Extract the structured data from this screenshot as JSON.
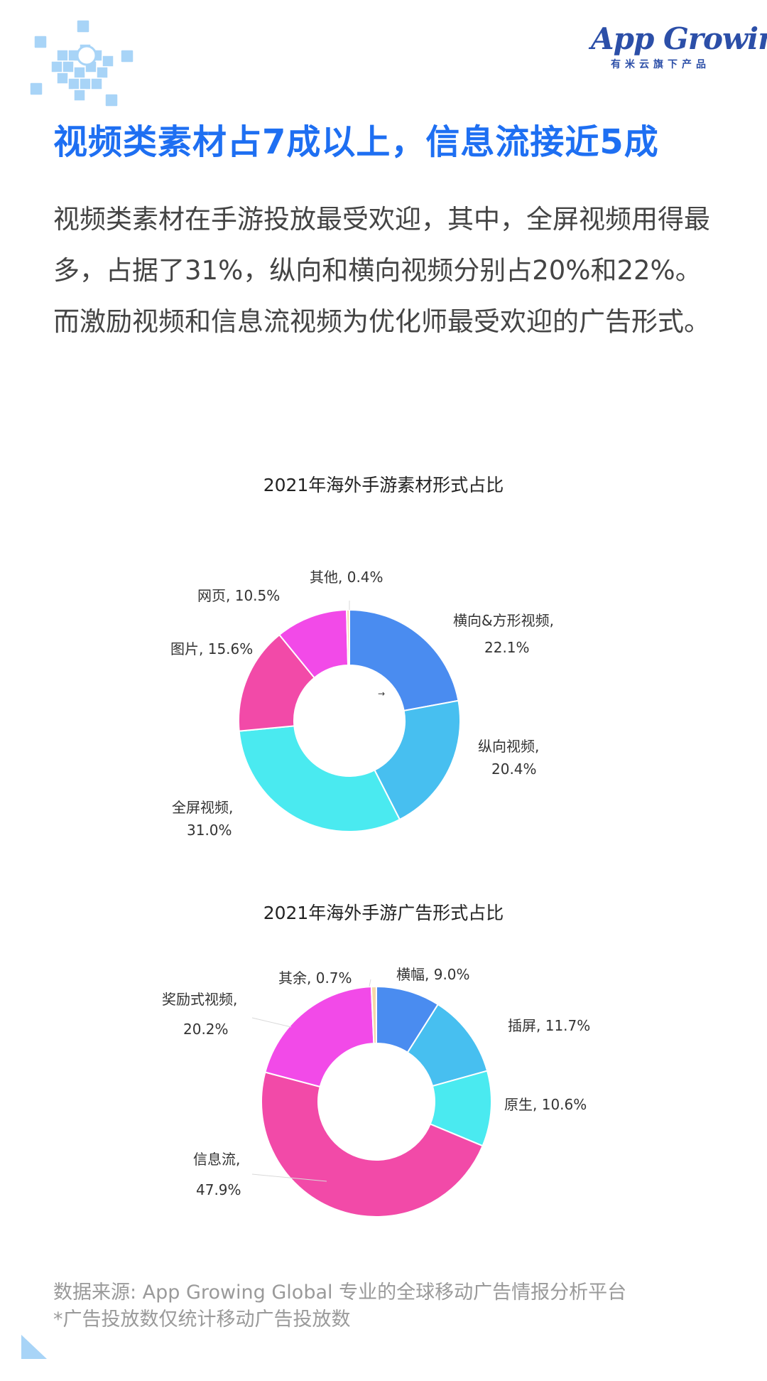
{
  "brand": {
    "name": "App Growing",
    "tagline": "有米云旗下产品"
  },
  "heading": "视频类素材占7成以上，信息流接近5成",
  "body": "视频类素材在手游投放最受欢迎，其中，全屏视频用得最多，占据了31%，纵向和横向视频分别占20%和22%。而激励视频和信息流视频为优化师最受欢迎的广告形式。",
  "colors": {
    "accent": "#1e6ff2",
    "decor": "#a8d4f7"
  },
  "chart_data": [
    {
      "type": "pie",
      "title": "2021年海外手游素材形式占比",
      "slices": [
        {
          "label_name": "横向&方形视频,",
          "label_value": "22.1%",
          "value": 22.1,
          "color": "#4a8cf0"
        },
        {
          "label_name": "纵向视频,",
          "label_value": "20.4%",
          "value": 20.4,
          "color": "#47bff0"
        },
        {
          "label_name": "全屏视频,",
          "label_value": "31.0%",
          "value": 31.0,
          "color": "#4aeaf0"
        },
        {
          "label_name": "图片, 15.6%",
          "label_value": "",
          "value": 15.6,
          "color": "#f24aa8"
        },
        {
          "label_name": "网页, 10.5%",
          "label_value": "",
          "value": 10.5,
          "color": "#f24ae8"
        },
        {
          "label_name": "其他, 0.4%",
          "label_value": "",
          "value": 0.4,
          "color": "#f6d8a8"
        }
      ],
      "center_mark": "→"
    },
    {
      "type": "pie",
      "title": "2021年海外手游广告形式占比",
      "slices": [
        {
          "label_name": "横幅, 9.0%",
          "label_value": "",
          "value": 9.0,
          "color": "#4a8cf0"
        },
        {
          "label_name": "插屏, 11.7%",
          "label_value": "",
          "value": 11.7,
          "color": "#47bff0"
        },
        {
          "label_name": "原生, 10.6%",
          "label_value": "",
          "value": 10.6,
          "color": "#4aeaf0"
        },
        {
          "label_name": "信息流,",
          "label_value": "47.9%",
          "value": 47.9,
          "color": "#f24aa8"
        },
        {
          "label_name": "奖励式视频,",
          "label_value": "20.2%",
          "value": 20.2,
          "color": "#f24ae8"
        },
        {
          "label_name": "其余, 0.7%",
          "label_value": "",
          "value": 0.7,
          "color": "#f6d8a8"
        }
      ]
    }
  ],
  "footer": {
    "source": "数据来源: App Growing Global 专业的全球移动广告情报分析平台",
    "note": "*广告投放数仅统计移动广告投放数"
  }
}
